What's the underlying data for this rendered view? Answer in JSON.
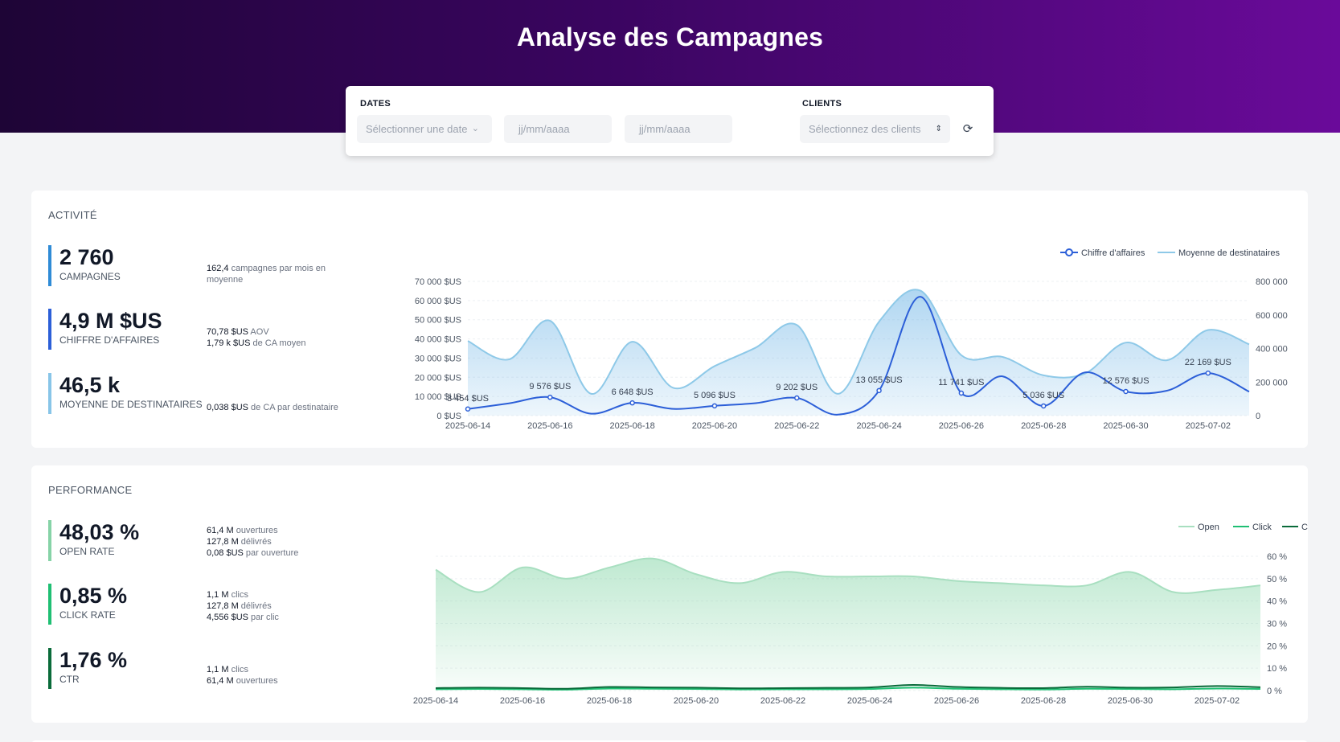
{
  "header": {
    "title": "Analyse des Campagnes"
  },
  "filters": {
    "dates_label": "DATES",
    "date_select_placeholder": "Sélectionner une date",
    "start_date_placeholder": "jj/mm/aaaa",
    "end_date_placeholder": "jj/mm/aaaa",
    "clients_label": "CLIENTS",
    "clients_placeholder": "Sélectionnez des clients"
  },
  "activity": {
    "title": "ACTIVITÉ",
    "kpis": [
      {
        "value": "2 760",
        "label": "CAMPAGNES",
        "color": "#2f8bd6",
        "details": [
          {
            "strong": "162,4",
            "text": " campagnes par mois en moyenne"
          }
        ]
      },
      {
        "value": "4,9 M $US",
        "label": "CHIFFRE D'AFFAIRES",
        "color": "#2c5fd8",
        "details": [
          {
            "strong": "70,78 $US",
            "text": " AOV"
          },
          {
            "strong": "1,79 k $US",
            "text": " de CA moyen"
          }
        ]
      },
      {
        "value": "46,5 k",
        "label": "MOYENNE DE DESTINATAIRES",
        "color": "#88c5e8",
        "details": [
          {
            "strong": "0,038 $US",
            "text": " de CA par destinataire"
          }
        ]
      }
    ]
  },
  "performance": {
    "title": "PERFORMANCE",
    "kpis": [
      {
        "value": "48,03 %",
        "label": "OPEN RATE",
        "color": "#86d3a7",
        "details": [
          {
            "strong": "61,4 M",
            "text": " ouvertures"
          },
          {
            "strong": "127,8 M",
            "text": " délivrés"
          },
          {
            "strong": "0,08 $US",
            "text": " par ouverture"
          }
        ]
      },
      {
        "value": "0,85 %",
        "label": "CLICK RATE",
        "color": "#1fbf73",
        "details": [
          {
            "strong": "1,1 M",
            "text": " clics"
          },
          {
            "strong": "127,8 M",
            "text": " délivrés"
          },
          {
            "strong": "4,556 $US",
            "text": " par clic"
          }
        ]
      },
      {
        "value": "1,76 %",
        "label": "CTR",
        "color": "#0a6b3a",
        "details": [
          {
            "strong": "1,1 M",
            "text": " clics"
          },
          {
            "strong": "61,4 M",
            "text": " ouvertures"
          }
        ]
      }
    ]
  },
  "chart_data": [
    {
      "type": "line",
      "x": [
        "2025-06-14",
        "2025-06-15",
        "2025-06-16",
        "2025-06-17",
        "2025-06-18",
        "2025-06-19",
        "2025-06-20",
        "2025-06-21",
        "2025-06-22",
        "2025-06-23",
        "2025-06-24",
        "2025-06-25",
        "2025-06-26",
        "2025-06-27",
        "2025-06-28",
        "2025-06-29",
        "2025-06-30",
        "2025-07-01",
        "2025-07-02",
        "2025-07-03"
      ],
      "xticks": [
        "2025-06-14",
        "2025-06-16",
        "2025-06-18",
        "2025-06-20",
        "2025-06-22",
        "2025-06-24",
        "2025-06-26",
        "2025-06-28",
        "2025-06-30",
        "2025-07-02"
      ],
      "series": [
        {
          "name": "Chiffre d'affaires",
          "axis": "left",
          "color": "#2c5fd8",
          "values": [
            3454,
            6400,
            9576,
            1000,
            6648,
            3500,
            5096,
            6500,
            9202,
            500,
            13055,
            62000,
            11741,
            20500,
            5036,
            22500,
            12576,
            13000,
            22169,
            12500
          ],
          "labels": [
            "3 454 $US",
            null,
            "9 576 $US",
            null,
            "6 648 $US",
            null,
            "5 096 $US",
            null,
            "9 202 $US",
            null,
            "13 055 $US",
            null,
            "11 741 $US",
            null,
            "5 036 $US",
            null,
            "12 576 $US",
            null,
            "22 169 $US",
            null
          ]
        },
        {
          "name": "Moyenne de destinataires",
          "axis": "right",
          "color": "#8ec9e8",
          "values": [
            445000,
            335000,
            565000,
            130000,
            440000,
            165000,
            295000,
            405000,
            540000,
            130000,
            560000,
            745000,
            360000,
            350000,
            240000,
            250000,
            435000,
            330000,
            510000,
            425000
          ]
        }
      ],
      "yleft": {
        "min": 0,
        "max": 70000,
        "ticks": [
          "0 $US",
          "10 000 $US",
          "20 000 $US",
          "30 000 $US",
          "40 000 $US",
          "50 000 $US",
          "60 000 $US",
          "70 000 $US"
        ]
      },
      "yright": {
        "min": 0,
        "max": 800000,
        "ticks": [
          "0",
          "200 000",
          "400 000",
          "600 000",
          "800 000"
        ]
      },
      "legend": "top-right"
    },
    {
      "type": "area",
      "x": [
        "2025-06-14",
        "2025-06-15",
        "2025-06-16",
        "2025-06-17",
        "2025-06-18",
        "2025-06-19",
        "2025-06-20",
        "2025-06-21",
        "2025-06-22",
        "2025-06-23",
        "2025-06-24",
        "2025-06-25",
        "2025-06-26",
        "2025-06-27",
        "2025-06-28",
        "2025-06-29",
        "2025-06-30",
        "2025-07-01",
        "2025-07-02",
        "2025-07-03"
      ],
      "xticks": [
        "2025-06-14",
        "2025-06-16",
        "2025-06-18",
        "2025-06-20",
        "2025-06-22",
        "2025-06-24",
        "2025-06-26",
        "2025-06-28",
        "2025-06-30",
        "2025-07-02"
      ],
      "series": [
        {
          "name": "Open",
          "color": "#a8dfc0",
          "values": [
            54,
            44,
            55,
            50,
            55,
            59,
            52,
            48,
            53,
            51,
            51,
            51,
            49,
            48,
            47,
            47,
            53,
            44,
            45,
            47
          ]
        },
        {
          "name": "Click",
          "color": "#1fbf73",
          "values": [
            0.6,
            0.7,
            0.6,
            0.4,
            0.9,
            0.8,
            0.7,
            0.5,
            0.6,
            0.6,
            0.7,
            1.3,
            0.8,
            0.6,
            0.5,
            0.8,
            0.7,
            0.6,
            0.9,
            0.7
          ]
        },
        {
          "name": "CTR",
          "color": "#0a6b3a",
          "values": [
            1.1,
            1.3,
            1.1,
            0.8,
            1.6,
            1.4,
            1.3,
            1.0,
            1.1,
            1.2,
            1.4,
            2.5,
            1.6,
            1.2,
            1.1,
            1.7,
            1.3,
            1.4,
            2.0,
            1.5
          ]
        }
      ],
      "y": {
        "min": 0,
        "max": 60,
        "ticks": [
          "0 %",
          "10 %",
          "20 %",
          "30 %",
          "40 %",
          "50 %",
          "60 %"
        ]
      },
      "legend": "top-right"
    }
  ]
}
